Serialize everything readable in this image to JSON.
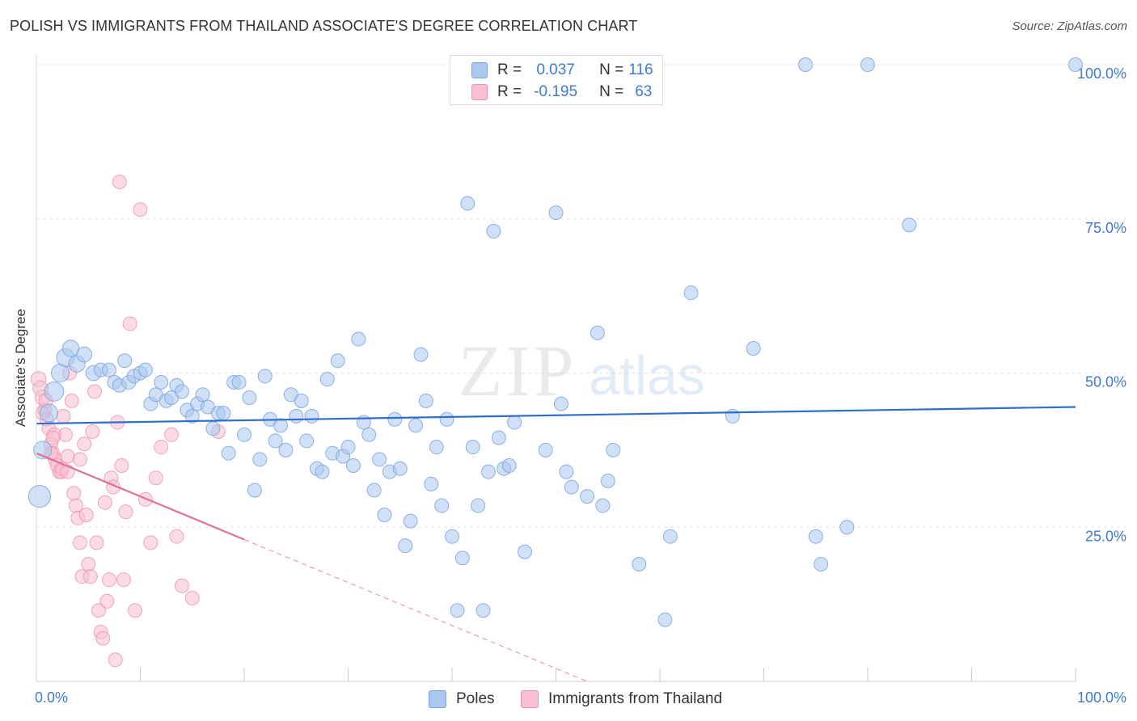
{
  "title": "POLISH VS IMMIGRANTS FROM THAILAND ASSOCIATE'S DEGREE CORRELATION CHART",
  "source": "Source: ZipAtlas.com",
  "watermark": {
    "zip": "ZIP",
    "atlas": "atlas"
  },
  "legend_top": {
    "r_label": "R =",
    "n_label": "N =",
    "rows": [
      {
        "r": "0.037",
        "n": "116"
      },
      {
        "r": "-0.195",
        "n": "63"
      }
    ]
  },
  "legend_bottom": [
    "Poles",
    "Immigrants from Thailand"
  ],
  "colors": {
    "blue_fill": "#a9c8f0",
    "blue_stroke": "#7aa5dc",
    "blue_line": "#2f6fca",
    "pink_fill": "#f7bfd0",
    "pink_stroke": "#ee8fb0",
    "pink_line": "#e0709a",
    "axis_text": "#3f7ad1"
  },
  "chart_data": {
    "type": "scatter",
    "xlabel": "",
    "ylabel": "Associate's Degree",
    "xlim": [
      0,
      100
    ],
    "ylim": [
      0,
      100
    ],
    "x_tick_labels": [
      "0.0%",
      "100.0%"
    ],
    "y_tick_labels": [
      "25.0%",
      "50.0%",
      "75.0%",
      "100.0%"
    ],
    "y_ticks": [
      25,
      50,
      75,
      100
    ],
    "grid": true,
    "legend_position": "top-center",
    "series": [
      {
        "name": "Poles",
        "trend": {
          "x": [
            0,
            100
          ],
          "y": [
            41.8,
            44.5
          ]
        },
        "points": [
          [
            0.3,
            30,
            16
          ],
          [
            0.6,
            37.5,
            13
          ],
          [
            1.2,
            43.5,
            13
          ],
          [
            1.7,
            47,
            14
          ],
          [
            2.3,
            50,
            13
          ],
          [
            2.8,
            52.5,
            13
          ],
          [
            3.3,
            54,
            12
          ],
          [
            3.9,
            51.5,
            12
          ],
          [
            4.6,
            53,
            11
          ],
          [
            5.5,
            50,
            11
          ],
          [
            6.2,
            50.5,
            10
          ],
          [
            7,
            50.5,
            10
          ],
          [
            7.5,
            48.5,
            10
          ],
          [
            8,
            48,
            10
          ],
          [
            8.5,
            52,
            10
          ],
          [
            8.9,
            48.5,
            10
          ],
          [
            9.4,
            49.5,
            10
          ],
          [
            10,
            50,
            10
          ],
          [
            10.5,
            50.5,
            10
          ],
          [
            11,
            45,
            10
          ],
          [
            11.5,
            46.5,
            10
          ],
          [
            12,
            48.5,
            10
          ],
          [
            12.5,
            45.5,
            10
          ],
          [
            13,
            46,
            10
          ],
          [
            13.5,
            48,
            10
          ],
          [
            14,
            47,
            10
          ],
          [
            14.5,
            44,
            10
          ],
          [
            15,
            43,
            10
          ],
          [
            15.5,
            45,
            10
          ],
          [
            16,
            46.5,
            10
          ],
          [
            16.5,
            44.5,
            10
          ],
          [
            17,
            41,
            10
          ],
          [
            17.5,
            43.5,
            10
          ],
          [
            18,
            43.5,
            10
          ],
          [
            18.5,
            37,
            10
          ],
          [
            19,
            48.5,
            10
          ],
          [
            19.5,
            48.5,
            10
          ],
          [
            20,
            40,
            10
          ],
          [
            20.5,
            46,
            10
          ],
          [
            21,
            31,
            10
          ],
          [
            21.5,
            36,
            10
          ],
          [
            22,
            49.5,
            10
          ],
          [
            22.5,
            42.5,
            10
          ],
          [
            23,
            39,
            10
          ],
          [
            23.5,
            41.5,
            10
          ],
          [
            24,
            37.5,
            10
          ],
          [
            24.5,
            46.5,
            10
          ],
          [
            25,
            43,
            10
          ],
          [
            25.5,
            45.5,
            10
          ],
          [
            26,
            39,
            10
          ],
          [
            26.5,
            43,
            10
          ],
          [
            27,
            34.5,
            10
          ],
          [
            27.5,
            34,
            10
          ],
          [
            28,
            49,
            10
          ],
          [
            28.5,
            37,
            10
          ],
          [
            29,
            52,
            10
          ],
          [
            29.5,
            36.5,
            10
          ],
          [
            30,
            38,
            10
          ],
          [
            30.5,
            35,
            10
          ],
          [
            31,
            55.5,
            10
          ],
          [
            31.5,
            42,
            10
          ],
          [
            32,
            40,
            10
          ],
          [
            32.5,
            31,
            10
          ],
          [
            33,
            36,
            10
          ],
          [
            33.5,
            27,
            10
          ],
          [
            34,
            34,
            10
          ],
          [
            34.5,
            42.5,
            10
          ],
          [
            35,
            34.5,
            10
          ],
          [
            35.5,
            22,
            10
          ],
          [
            36,
            26,
            10
          ],
          [
            36.5,
            41.5,
            10
          ],
          [
            37,
            53,
            10
          ],
          [
            37.5,
            45.5,
            10
          ],
          [
            38,
            32,
            10
          ],
          [
            38.5,
            38,
            10
          ],
          [
            39,
            28.5,
            10
          ],
          [
            39.5,
            42.5,
            10
          ],
          [
            40,
            23.5,
            10
          ],
          [
            40.5,
            11.5,
            10
          ],
          [
            41,
            20,
            10
          ],
          [
            41.5,
            77.5,
            10
          ],
          [
            42,
            38,
            10
          ],
          [
            42.5,
            28.5,
            10
          ],
          [
            43,
            11.5,
            10
          ],
          [
            43.5,
            34,
            10
          ],
          [
            44,
            73,
            10
          ],
          [
            44.5,
            39.5,
            10
          ],
          [
            45,
            34.5,
            10
          ],
          [
            45.5,
            35,
            10
          ],
          [
            46,
            42,
            10
          ],
          [
            47,
            21,
            10
          ],
          [
            49,
            37.5,
            10
          ],
          [
            50,
            76,
            10
          ],
          [
            50.5,
            45,
            10
          ],
          [
            51,
            34,
            10
          ],
          [
            51.5,
            31.5,
            10
          ],
          [
            53,
            30,
            10
          ],
          [
            54,
            56.5,
            10
          ],
          [
            54.5,
            28.5,
            10
          ],
          [
            55,
            32.5,
            10
          ],
          [
            55.5,
            37.5,
            10
          ],
          [
            58,
            19,
            10
          ],
          [
            60.5,
            10,
            10
          ],
          [
            61,
            23.5,
            10
          ],
          [
            63,
            63,
            10
          ],
          [
            67,
            43,
            10
          ],
          [
            69,
            54,
            10
          ],
          [
            75,
            23.5,
            10
          ],
          [
            75.5,
            19,
            10
          ],
          [
            78,
            25,
            10
          ],
          [
            74,
            100,
            10
          ],
          [
            80,
            100,
            10
          ],
          [
            84,
            74,
            10
          ],
          [
            100,
            100,
            10
          ]
        ]
      },
      {
        "name": "Immigrants from Thailand",
        "trend": {
          "x": [
            0,
            20
          ],
          "y": [
            37,
            23
          ],
          "dash_to": [
            53,
            0
          ]
        },
        "points": [
          [
            0.2,
            49,
            11
          ],
          [
            0.4,
            47.5,
            11
          ],
          [
            0.6,
            46,
            11
          ],
          [
            0.8,
            44,
            10
          ],
          [
            1,
            42.5,
            10
          ],
          [
            1.2,
            41,
            10
          ],
          [
            1.4,
            38.5,
            10
          ],
          [
            1.6,
            37,
            10
          ],
          [
            1.8,
            36,
            10
          ],
          [
            2,
            35,
            10
          ],
          [
            2.2,
            34,
            10
          ],
          [
            2.4,
            34,
            10
          ],
          [
            2.6,
            43,
            10
          ],
          [
            2.8,
            40,
            10
          ],
          [
            3,
            36.5,
            10
          ],
          [
            3.2,
            50,
            10
          ],
          [
            3.4,
            45.5,
            10
          ],
          [
            3.6,
            30.5,
            10
          ],
          [
            3.8,
            28.5,
            10
          ],
          [
            4,
            26.5,
            10
          ],
          [
            4.2,
            22.5,
            10
          ],
          [
            4.4,
            17,
            10
          ],
          [
            4.6,
            38.5,
            10
          ],
          [
            4.8,
            27,
            10
          ],
          [
            5,
            19,
            10
          ],
          [
            5.2,
            17,
            10
          ],
          [
            5.4,
            40.5,
            10
          ],
          [
            5.6,
            47,
            10
          ],
          [
            5.8,
            22.5,
            10
          ],
          [
            6,
            11.5,
            10
          ],
          [
            6.2,
            8,
            10
          ],
          [
            6.4,
            7,
            10
          ],
          [
            6.6,
            29,
            10
          ],
          [
            6.8,
            13,
            10
          ],
          [
            7,
            16.5,
            10
          ],
          [
            7.2,
            33,
            10
          ],
          [
            7.4,
            31.5,
            10
          ],
          [
            7.6,
            3.5,
            10
          ],
          [
            7.8,
            42,
            10
          ],
          [
            8,
            81,
            10
          ],
          [
            8.2,
            35,
            10
          ],
          [
            8.4,
            16.5,
            10
          ],
          [
            8.6,
            27.5,
            10
          ],
          [
            9,
            58,
            10
          ],
          [
            9.5,
            11.5,
            10
          ],
          [
            10,
            76.5,
            10
          ],
          [
            10.5,
            29.5,
            10
          ],
          [
            11,
            22.5,
            10
          ],
          [
            11.5,
            33,
            10
          ],
          [
            12,
            38,
            10
          ],
          [
            13,
            40,
            10
          ],
          [
            13.5,
            23.5,
            10
          ],
          [
            14,
            15.5,
            10
          ],
          [
            15,
            13.5,
            10
          ],
          [
            17.5,
            40.5,
            10
          ],
          [
            1.4,
            37,
            10
          ],
          [
            2.5,
            34.5,
            10
          ],
          [
            3,
            34,
            10
          ],
          [
            1.7,
            40,
            10
          ],
          [
            0.9,
            45.5,
            10
          ],
          [
            4.2,
            36,
            10
          ],
          [
            1.6,
            39.5,
            10
          ],
          [
            0.6,
            43.5,
            10
          ]
        ]
      }
    ]
  }
}
